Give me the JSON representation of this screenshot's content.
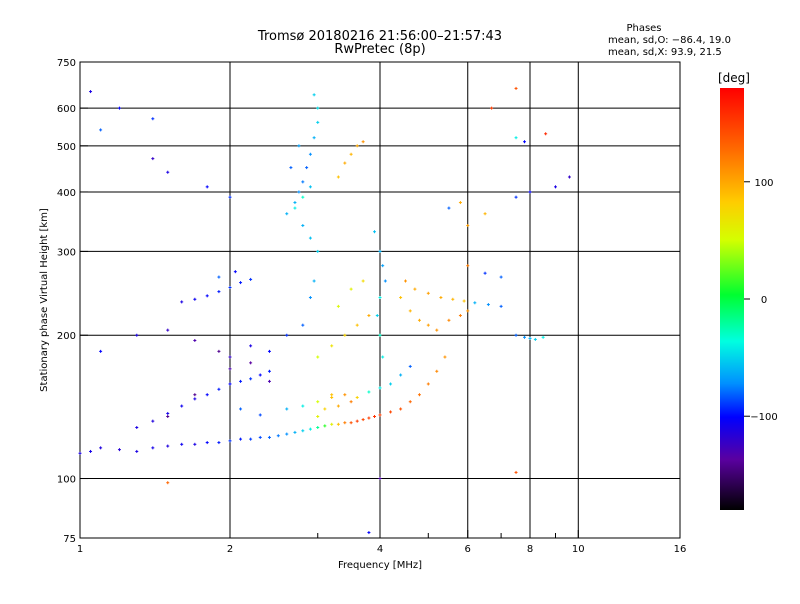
{
  "title_line1": "Tromsø 20180216 21:56:00–21:57:43",
  "title_line2": "RwPretec (8p)",
  "phases": {
    "heading": "Phases",
    "line_o": "mean, sd,O: −86.4, 19.0",
    "line_x": "mean, sd,X:  93.9, 21.5"
  },
  "colorbar": {
    "label": "[deg]",
    "ticks": [
      {
        "label": "100",
        "value": 100
      },
      {
        "label": "0",
        "value": 0
      },
      {
        "label": "−100",
        "value": -100
      }
    ],
    "range": [
      -180,
      180
    ]
  },
  "chart_data": {
    "type": "scatter",
    "title": "Tromsø 20180216 21:56:00–21:57:43",
    "subtitle": "RwPretec (8p)",
    "xlabel": "Frequency [MHz]",
    "ylabel": "Stationary phase Virtual Height [km]",
    "x_scale": "log",
    "y_scale": "log",
    "xlim": [
      1,
      16
    ],
    "ylim": [
      75,
      750
    ],
    "x_ticks": [
      {
        "label": "1",
        "value": 1
      },
      {
        "label": "2",
        "value": 2
      },
      {
        "label": "4",
        "value": 4
      },
      {
        "label": "6",
        "value": 6
      },
      {
        "label": "8",
        "value": 8
      },
      {
        "label": "10",
        "value": 10
      },
      {
        "label": "16",
        "value": 16
      }
    ],
    "x_grid": [
      2,
      4,
      6,
      8,
      10
    ],
    "x_minor": [
      3,
      5,
      7,
      9
    ],
    "y_ticks": [
      {
        "label": "750",
        "value": 750
      },
      {
        "label": "600",
        "value": 600
      },
      {
        "label": "500",
        "value": 500
      },
      {
        "label": "400",
        "value": 400
      },
      {
        "label": "300",
        "value": 300
      },
      {
        "label": "200",
        "value": 200
      },
      {
        "label": "100",
        "value": 100
      },
      {
        "label": "75",
        "value": 75
      }
    ],
    "y_grid": [
      600,
      500,
      400,
      300,
      200,
      100
    ],
    "grid": true,
    "color_scale": "phase [deg], rainbow",
    "series": [
      {
        "points": [
          [
            1.0,
            113,
            -110
          ],
          [
            1.05,
            114,
            -108
          ],
          [
            1.1,
            116,
            -112
          ],
          [
            1.2,
            115,
            -115
          ],
          [
            1.3,
            114,
            -110
          ],
          [
            1.4,
            116,
            -108
          ],
          [
            1.5,
            117,
            -112
          ],
          [
            1.6,
            118,
            -105
          ],
          [
            1.7,
            118,
            -110
          ],
          [
            1.8,
            119,
            -100
          ],
          [
            1.9,
            119,
            -95
          ],
          [
            2.0,
            120,
            -90
          ],
          [
            2.1,
            121,
            -95
          ],
          [
            2.2,
            121,
            -88
          ],
          [
            2.3,
            122,
            -85
          ],
          [
            2.4,
            122,
            -80
          ],
          [
            2.5,
            123,
            -75
          ],
          [
            2.6,
            124,
            -70
          ],
          [
            2.7,
            125,
            -60
          ],
          [
            2.8,
            126,
            -50
          ],
          [
            2.9,
            127,
            -40
          ],
          [
            3.0,
            128,
            -20
          ],
          [
            3.1,
            129,
            10
          ],
          [
            3.2,
            130,
            60
          ],
          [
            3.3,
            130,
            90
          ],
          [
            3.4,
            131,
            120
          ],
          [
            3.5,
            131,
            140
          ],
          [
            3.6,
            132,
            150
          ],
          [
            3.7,
            133,
            145
          ],
          [
            3.8,
            134,
            150
          ],
          [
            3.9,
            135,
            155
          ],
          [
            4.0,
            136,
            150
          ],
          [
            4.2,
            138,
            145
          ],
          [
            4.4,
            140,
            140
          ],
          [
            4.6,
            145,
            130
          ],
          [
            4.8,
            150,
            125
          ],
          [
            5.0,
            158,
            120
          ],
          [
            5.2,
            168,
            115
          ],
          [
            5.4,
            180,
            110
          ],
          [
            1.3,
            128,
            -110
          ],
          [
            1.4,
            132,
            -112
          ],
          [
            1.5,
            137,
            -108
          ],
          [
            1.6,
            142,
            -105
          ],
          [
            1.7,
            147,
            -110
          ],
          [
            1.8,
            150,
            -100
          ],
          [
            1.9,
            154,
            -95
          ],
          [
            2.0,
            158,
            -100
          ],
          [
            2.1,
            160,
            -95
          ],
          [
            2.2,
            162,
            -90
          ],
          [
            2.3,
            165,
            -100
          ],
          [
            2.4,
            168,
            -95
          ],
          [
            1.5,
            135,
            -140
          ],
          [
            1.7,
            150,
            -140
          ],
          [
            2.0,
            170,
            -130
          ],
          [
            2.2,
            175,
            -135
          ],
          [
            2.4,
            160,
            -130
          ],
          [
            2.1,
            140,
            -80
          ],
          [
            2.3,
            136,
            -85
          ],
          [
            2.6,
            140,
            -60
          ],
          [
            2.8,
            142,
            -40
          ],
          [
            3.0,
            145,
            50
          ],
          [
            3.2,
            150,
            90
          ],
          [
            3.4,
            150,
            110
          ],
          [
            3.6,
            148,
            80
          ],
          [
            3.8,
            152,
            -30
          ],
          [
            4.0,
            155,
            -40
          ],
          [
            4.2,
            158,
            -50
          ],
          [
            4.4,
            165,
            -60
          ],
          [
            4.6,
            172,
            -80
          ],
          [
            3.0,
            135,
            60
          ],
          [
            3.1,
            140,
            80
          ],
          [
            3.2,
            148,
            90
          ],
          [
            3.3,
            142,
            100
          ],
          [
            3.5,
            145,
            120
          ],
          [
            1.6,
            235,
            -110
          ],
          [
            1.7,
            238,
            -105
          ],
          [
            1.8,
            242,
            -100
          ],
          [
            1.9,
            247,
            -95
          ],
          [
            2.0,
            252,
            -90
          ],
          [
            2.1,
            258,
            -95
          ],
          [
            2.2,
            262,
            -90
          ],
          [
            1.9,
            265,
            -80
          ],
          [
            2.05,
            272,
            -100
          ],
          [
            2.7,
            380,
            -60
          ],
          [
            2.75,
            400,
            -70
          ],
          [
            2.8,
            420,
            -75
          ],
          [
            2.85,
            450,
            -80
          ],
          [
            2.9,
            480,
            -70
          ],
          [
            2.95,
            520,
            -60
          ],
          [
            3.0,
            560,
            -50
          ],
          [
            2.7,
            370,
            -40
          ],
          [
            2.8,
            390,
            -30
          ],
          [
            2.9,
            410,
            -55
          ],
          [
            3.0,
            600,
            -45
          ],
          [
            2.95,
            640,
            -50
          ],
          [
            2.6,
            360,
            -60
          ],
          [
            2.65,
            450,
            -80
          ],
          [
            2.75,
            500,
            -65
          ],
          [
            3.3,
            430,
            90
          ],
          [
            3.4,
            460,
            100
          ],
          [
            3.5,
            480,
            95
          ],
          [
            3.6,
            500,
            100
          ],
          [
            3.7,
            510,
            110
          ],
          [
            4.0,
            300,
            -60
          ],
          [
            4.05,
            280,
            -65
          ],
          [
            4.1,
            260,
            -70
          ],
          [
            4.0,
            240,
            -40
          ],
          [
            3.95,
            220,
            -50
          ],
          [
            4.0,
            200,
            -30
          ],
          [
            4.05,
            180,
            -40
          ],
          [
            3.9,
            330,
            -55
          ],
          [
            4.5,
            260,
            110
          ],
          [
            4.7,
            250,
            100
          ],
          [
            5.0,
            245,
            105
          ],
          [
            5.3,
            240,
            100
          ],
          [
            5.6,
            238,
            95
          ],
          [
            5.9,
            236,
            90
          ],
          [
            6.2,
            234,
            -60
          ],
          [
            6.6,
            232,
            -70
          ],
          [
            7.0,
            230,
            -80
          ],
          [
            4.4,
            240,
            90
          ],
          [
            4.6,
            225,
            95
          ],
          [
            4.8,
            215,
            100
          ],
          [
            5.0,
            210,
            105
          ],
          [
            5.2,
            205,
            110
          ],
          [
            5.5,
            215,
            115
          ],
          [
            5.8,
            220,
            120
          ],
          [
            6.0,
            225,
            110
          ],
          [
            3.4,
            200,
            80
          ],
          [
            3.6,
            210,
            90
          ],
          [
            3.8,
            220,
            100
          ],
          [
            3.2,
            190,
            70
          ],
          [
            3.0,
            180,
            50
          ],
          [
            3.5,
            250,
            60
          ],
          [
            3.7,
            260,
            75
          ],
          [
            3.3,
            230,
            55
          ],
          [
            7.5,
            200,
            -80
          ],
          [
            7.8,
            198,
            -70
          ],
          [
            8.0,
            197,
            -60
          ],
          [
            8.2,
            196,
            -50
          ],
          [
            8.5,
            198,
            -40
          ],
          [
            1.05,
            650,
            -110
          ],
          [
            1.2,
            600,
            -100
          ],
          [
            1.4,
            570,
            -90
          ],
          [
            1.1,
            540,
            -80
          ],
          [
            1.4,
            470,
            -120
          ],
          [
            1.5,
            440,
            -110
          ],
          [
            1.8,
            410,
            -100
          ],
          [
            2.0,
            390,
            -90
          ],
          [
            6.7,
            600,
            150
          ],
          [
            7.5,
            520,
            -40
          ],
          [
            7.8,
            510,
            -100
          ],
          [
            8.6,
            530,
            160
          ],
          [
            7.5,
            660,
            140
          ],
          [
            9.0,
            410,
            -110
          ],
          [
            9.6,
            430,
            -120
          ],
          [
            8.0,
            400,
            -100
          ],
          [
            7.5,
            390,
            -90
          ],
          [
            5.5,
            370,
            -80
          ],
          [
            5.8,
            380,
            100
          ],
          [
            6.5,
            360,
            95
          ],
          [
            6.0,
            340,
            105
          ],
          [
            6.0,
            280,
            120
          ],
          [
            6.5,
            270,
            -90
          ],
          [
            7.0,
            265,
            -80
          ],
          [
            1.5,
            98,
            130
          ],
          [
            7.5,
            103,
            140
          ],
          [
            4.0,
            100,
            -130
          ],
          [
            3.8,
            77,
            -100
          ],
          [
            1.1,
            185,
            -100
          ],
          [
            1.3,
            200,
            -110
          ],
          [
            1.5,
            205,
            -120
          ],
          [
            1.7,
            195,
            -130
          ],
          [
            1.9,
            185,
            -140
          ],
          [
            2.0,
            180,
            -120
          ],
          [
            2.2,
            190,
            -110
          ],
          [
            2.4,
            185,
            -100
          ],
          [
            2.6,
            200,
            -90
          ],
          [
            2.8,
            210,
            -80
          ],
          [
            2.9,
            240,
            -70
          ],
          [
            2.95,
            260,
            -60
          ],
          [
            3.0,
            300,
            -50
          ],
          [
            2.9,
            320,
            -55
          ],
          [
            2.8,
            340,
            -60
          ]
        ]
      }
    ]
  }
}
